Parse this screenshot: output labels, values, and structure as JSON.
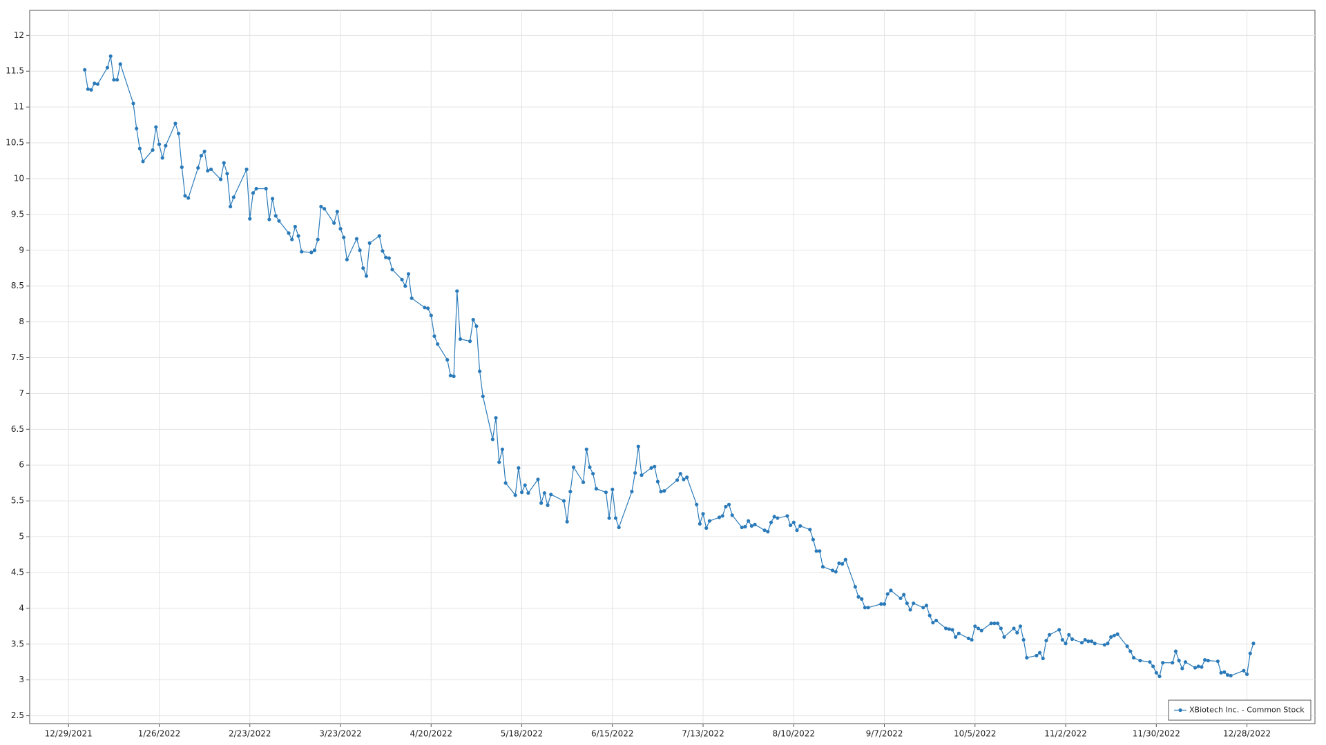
{
  "chart_data": {
    "type": "line",
    "x": [
      "1/3/2022",
      "1/4/2022",
      "1/5/2022",
      "1/6/2022",
      "1/7/2022",
      "1/10/2022",
      "1/11/2022",
      "1/12/2022",
      "1/13/2022",
      "1/14/2022",
      "1/18/2022",
      "1/19/2022",
      "1/20/2022",
      "1/21/2022",
      "1/24/2022",
      "1/25/2022",
      "1/26/2022",
      "1/27/2022",
      "1/28/2022",
      "1/31/2022",
      "2/1/2022",
      "2/2/2022",
      "2/3/2022",
      "2/4/2022",
      "2/7/2022",
      "2/8/2022",
      "2/9/2022",
      "2/10/2022",
      "2/11/2022",
      "2/14/2022",
      "2/15/2022",
      "2/16/2022",
      "2/17/2022",
      "2/18/2022",
      "2/22/2022",
      "2/23/2022",
      "2/24/2022",
      "2/25/2022",
      "2/28/2022",
      "3/1/2022",
      "3/2/2022",
      "3/3/2022",
      "3/4/2022",
      "3/7/2022",
      "3/8/2022",
      "3/9/2022",
      "3/10/2022",
      "3/11/2022",
      "3/14/2022",
      "3/15/2022",
      "3/16/2022",
      "3/17/2022",
      "3/18/2022",
      "3/21/2022",
      "3/22/2022",
      "3/23/2022",
      "3/24/2022",
      "3/25/2022",
      "3/28/2022",
      "3/29/2022",
      "3/30/2022",
      "3/31/2022",
      "4/1/2022",
      "4/4/2022",
      "4/5/2022",
      "4/6/2022",
      "4/7/2022",
      "4/8/2022",
      "4/11/2022",
      "4/12/2022",
      "4/13/2022",
      "4/14/2022",
      "4/18/2022",
      "4/19/2022",
      "4/20/2022",
      "4/21/2022",
      "4/22/2022",
      "4/25/2022",
      "4/26/2022",
      "4/27/2022",
      "4/28/2022",
      "4/29/2022",
      "5/2/2022",
      "5/3/2022",
      "5/4/2022",
      "5/5/2022",
      "5/6/2022",
      "5/9/2022",
      "5/10/2022",
      "5/11/2022",
      "5/12/2022",
      "5/13/2022",
      "5/16/2022",
      "5/17/2022",
      "5/18/2022",
      "5/19/2022",
      "5/20/2022",
      "5/23/2022",
      "5/24/2022",
      "5/25/2022",
      "5/26/2022",
      "5/27/2022",
      "5/31/2022",
      "6/1/2022",
      "6/2/2022",
      "6/3/2022",
      "6/6/2022",
      "6/7/2022",
      "6/8/2022",
      "6/9/2022",
      "6/10/2022",
      "6/13/2022",
      "6/14/2022",
      "6/15/2022",
      "6/16/2022",
      "6/17/2022",
      "6/21/2022",
      "6/22/2022",
      "6/23/2022",
      "6/24/2022",
      "6/27/2022",
      "6/28/2022",
      "6/29/2022",
      "6/30/2022",
      "7/1/2022",
      "7/5/2022",
      "7/6/2022",
      "7/7/2022",
      "7/8/2022",
      "7/11/2022",
      "7/12/2022",
      "7/13/2022",
      "7/14/2022",
      "7/15/2022",
      "7/18/2022",
      "7/19/2022",
      "7/20/2022",
      "7/21/2022",
      "7/22/2022",
      "7/25/2022",
      "7/26/2022",
      "7/27/2022",
      "7/28/2022",
      "7/29/2022",
      "8/1/2022",
      "8/2/2022",
      "8/3/2022",
      "8/4/2022",
      "8/5/2022",
      "8/8/2022",
      "8/9/2022",
      "8/10/2022",
      "8/11/2022",
      "8/12/2022",
      "8/15/2022",
      "8/16/2022",
      "8/17/2022",
      "8/18/2022",
      "8/19/2022",
      "8/22/2022",
      "8/23/2022",
      "8/24/2022",
      "8/25/2022",
      "8/26/2022",
      "8/29/2022",
      "8/30/2022",
      "8/31/2022",
      "9/1/2022",
      "9/2/2022",
      "9/6/2022",
      "9/7/2022",
      "9/8/2022",
      "9/9/2022",
      "9/12/2022",
      "9/13/2022",
      "9/14/2022",
      "9/15/2022",
      "9/16/2022",
      "9/19/2022",
      "9/20/2022",
      "9/21/2022",
      "9/22/2022",
      "9/23/2022",
      "9/26/2022",
      "9/27/2022",
      "9/28/2022",
      "9/29/2022",
      "9/30/2022",
      "10/3/2022",
      "10/4/2022",
      "10/5/2022",
      "10/6/2022",
      "10/7/2022",
      "10/10/2022",
      "10/11/2022",
      "10/12/2022",
      "10/13/2022",
      "10/14/2022",
      "10/17/2022",
      "10/18/2022",
      "10/19/2022",
      "10/20/2022",
      "10/21/2022",
      "10/24/2022",
      "10/25/2022",
      "10/26/2022",
      "10/27/2022",
      "10/28/2022",
      "10/31/2022",
      "11/1/2022",
      "11/2/2022",
      "11/3/2022",
      "11/4/2022",
      "11/7/2022",
      "11/8/2022",
      "11/9/2022",
      "11/10/2022",
      "11/11/2022",
      "11/14/2022",
      "11/15/2022",
      "11/16/2022",
      "11/17/2022",
      "11/18/2022",
      "11/21/2022",
      "11/22/2022",
      "11/23/2022",
      "11/25/2022",
      "11/28/2022",
      "11/29/2022",
      "11/30/2022",
      "12/1/2022",
      "12/2/2022",
      "12/5/2022",
      "12/6/2022",
      "12/7/2022",
      "12/8/2022",
      "12/9/2022",
      "12/12/2022",
      "12/13/2022",
      "12/14/2022",
      "12/15/2022",
      "12/16/2022",
      "12/19/2022",
      "12/20/2022",
      "12/21/2022",
      "12/22/2022",
      "12/23/2022",
      "12/27/2022",
      "12/28/2022",
      "12/29/2022",
      "12/30/2022"
    ],
    "series": [
      {
        "name": "XBiotech Inc. - Common Stock",
        "color": "#2a7ab9",
        "values": [
          11.52,
          11.25,
          11.24,
          11.33,
          11.32,
          11.55,
          11.71,
          11.38,
          11.38,
          11.6,
          11.05,
          10.7,
          10.42,
          10.24,
          10.4,
          10.72,
          10.48,
          10.29,
          10.46,
          10.77,
          10.63,
          10.16,
          9.76,
          9.73,
          10.15,
          10.32,
          10.38,
          10.11,
          10.13,
          9.99,
          10.22,
          10.07,
          9.61,
          9.74,
          10.13,
          9.44,
          9.8,
          9.86,
          9.86,
          9.43,
          9.72,
          9.48,
          9.41,
          9.24,
          9.15,
          9.33,
          9.2,
          8.98,
          8.97,
          9.0,
          9.15,
          9.61,
          9.58,
          9.38,
          9.54,
          9.3,
          9.18,
          8.87,
          9.16,
          9.0,
          8.75,
          8.64,
          9.1,
          9.2,
          8.99,
          8.9,
          8.89,
          8.73,
          8.59,
          8.5,
          8.67,
          8.33,
          8.2,
          8.19,
          8.09,
          7.8,
          7.69,
          7.47,
          7.25,
          7.24,
          8.43,
          7.76,
          7.73,
          8.03,
          7.94,
          7.31,
          6.96,
          6.36,
          6.66,
          6.04,
          6.22,
          5.75,
          5.58,
          5.96,
          5.62,
          5.72,
          5.61,
          5.8,
          5.47,
          5.61,
          5.44,
          5.59,
          5.5,
          5.21,
          5.63,
          5.97,
          5.76,
          6.22,
          5.97,
          5.88,
          5.67,
          5.62,
          5.26,
          5.66,
          5.26,
          5.13,
          5.63,
          5.89,
          6.26,
          5.86,
          5.96,
          5.98,
          5.77,
          5.63,
          5.64,
          5.79,
          5.88,
          5.8,
          5.83,
          5.45,
          5.18,
          5.32,
          5.12,
          5.22,
          5.27,
          5.29,
          5.42,
          5.45,
          5.3,
          5.13,
          5.14,
          5.22,
          5.15,
          5.17,
          5.09,
          5.07,
          5.2,
          5.28,
          5.26,
          5.29,
          5.16,
          5.2,
          5.09,
          5.15,
          5.1,
          4.96,
          4.8,
          4.8,
          4.58,
          4.53,
          4.51,
          4.63,
          4.62,
          4.68,
          4.3,
          4.16,
          4.13,
          4.01,
          4.01,
          4.06,
          4.06,
          4.2,
          4.25,
          4.14,
          4.19,
          4.07,
          3.98,
          4.07,
          4.01,
          4.04,
          3.9,
          3.8,
          3.83,
          3.72,
          3.71,
          3.7,
          3.6,
          3.65,
          3.58,
          3.56,
          3.75,
          3.72,
          3.69,
          3.79,
          3.79,
          3.79,
          3.72,
          3.6,
          3.72,
          3.66,
          3.75,
          3.56,
          3.31,
          3.34,
          3.38,
          3.3,
          3.55,
          3.63,
          3.7,
          3.56,
          3.51,
          3.63,
          3.57,
          3.52,
          3.56,
          3.54,
          3.54,
          3.51,
          3.49,
          3.51,
          3.6,
          3.62,
          3.64,
          3.47,
          3.4,
          3.31,
          3.27,
          3.25,
          3.19,
          3.1,
          3.05,
          3.24,
          3.24,
          3.4,
          3.27,
          3.16,
          3.25,
          3.17,
          3.19,
          3.18,
          3.28,
          3.27,
          3.26,
          3.1,
          3.11,
          3.07,
          3.06,
          3.13,
          3.08,
          3.37,
          3.51
        ]
      }
    ],
    "xlim": [
      "12/17/2021",
      "1/18/2023"
    ],
    "xticks": [
      "12/29/2021",
      "1/26/2022",
      "2/23/2022",
      "3/23/2022",
      "4/20/2022",
      "5/18/2022",
      "6/15/2022",
      "7/13/2022",
      "8/10/2022",
      "9/7/2022",
      "10/5/2022",
      "11/2/2022",
      "11/30/2022",
      "12/28/2022"
    ],
    "ylim": [
      2.39,
      12.35
    ],
    "yticks": [
      2.5,
      3,
      3.5,
      4,
      4.5,
      5,
      5.5,
      6,
      6.5,
      7,
      7.5,
      8,
      8.5,
      9,
      9.5,
      10,
      10.5,
      11,
      11.5,
      12
    ],
    "grid": true,
    "legend": "lower right"
  }
}
